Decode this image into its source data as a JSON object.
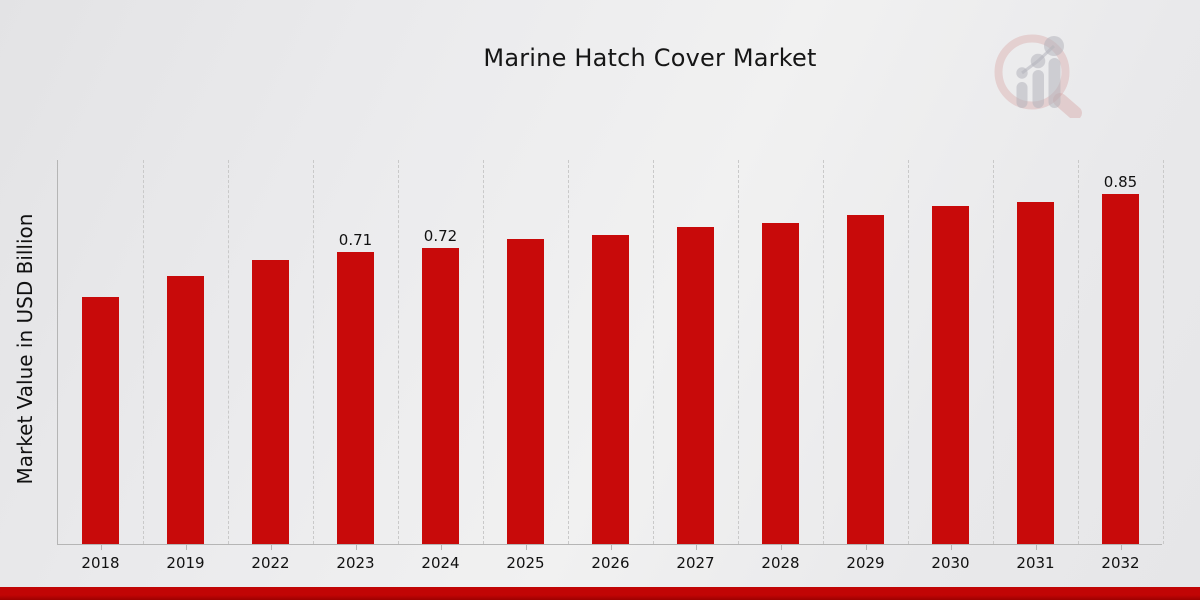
{
  "page": {
    "title": "Marine Hatch Cover Market"
  },
  "chart_data": {
    "type": "bar",
    "title": "Marine Hatch Cover Market",
    "xlabel": "",
    "ylabel": "Market Value in USD Billion",
    "categories": [
      "2018",
      "2019",
      "2022",
      "2023",
      "2024",
      "2025",
      "2026",
      "2027",
      "2028",
      "2029",
      "2030",
      "2031",
      "2032"
    ],
    "values": [
      0.6,
      0.65,
      0.69,
      0.71,
      0.72,
      0.74,
      0.75,
      0.77,
      0.78,
      0.8,
      0.82,
      0.83,
      0.85
    ],
    "bar_labels": [
      "",
      "",
      "",
      "0.71",
      "0.72",
      "",
      "",
      "",
      "",
      "",
      "",
      "",
      "0.85"
    ],
    "unit": "USD Billion",
    "ylim": [
      0,
      0.935
    ],
    "grid": "vertical-dashed",
    "legend": "none",
    "bar_color": "#c80a0a",
    "axis_color": "#b5b5b5",
    "gridline_color": "#c9c9c9",
    "text_color": "#111111"
  },
  "logo": {
    "name": "market-research-future-watermark",
    "ring_color": "#cf8f8f",
    "bars_color": "#b4b4bc"
  },
  "footer": {
    "stripe_color": "#c10505"
  }
}
